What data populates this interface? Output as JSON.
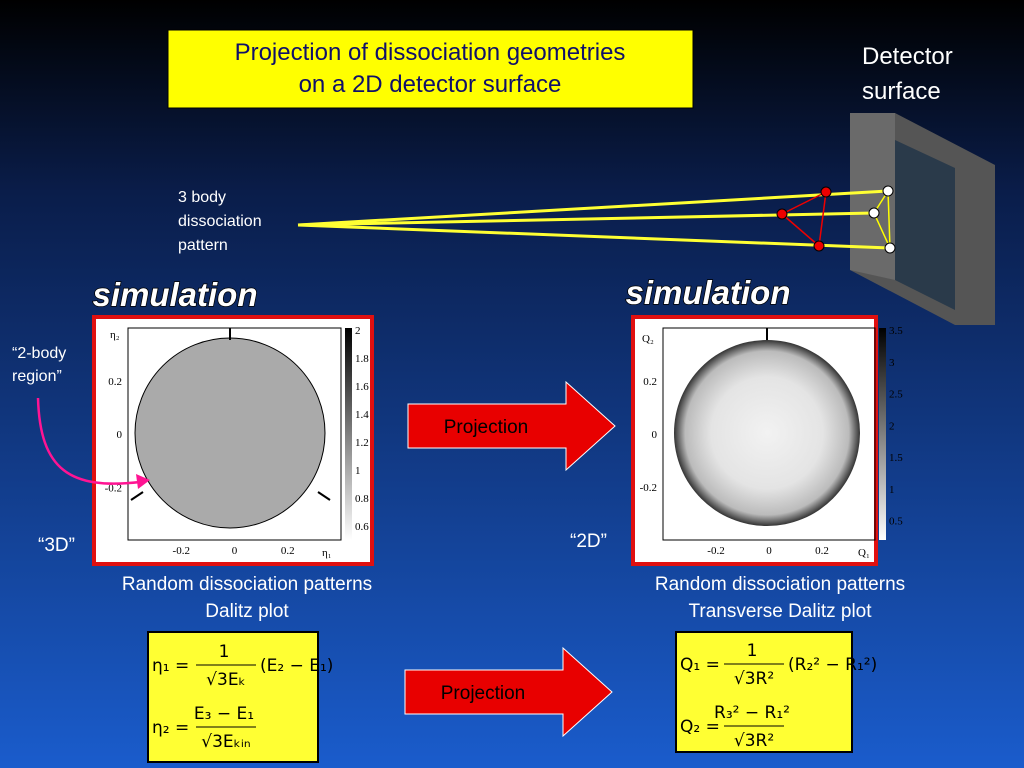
{
  "title": [
    "Projection of dissociation geometries",
    "on a 2D detector surface"
  ],
  "detector_label": [
    "Detector",
    "surface"
  ],
  "pattern_label": [
    "3 body",
    "dissociation",
    "pattern"
  ],
  "left_panel": {
    "heading": "simulation",
    "region_label": [
      "“2-body",
      "region”"
    ],
    "tag": "“3D”",
    "plot": {
      "y_axis_label": "η₂",
      "x_axis_label": "η₁",
      "yticks": [
        "0.2",
        "0",
        "-0.2"
      ],
      "xticks": [
        "-0.2",
        "0",
        "0.2"
      ],
      "colorbar_ticks": [
        "2",
        "1.8",
        "1.6",
        "1.4",
        "1.2",
        "1",
        "0.8",
        "0.6"
      ]
    },
    "caption": [
      "Random dissociation patterns",
      "Dalitz plot"
    ],
    "formula": [
      {
        "lhs": "η₁ =",
        "numerator": "1",
        "denominator": "√3Eₖ",
        "factor": "(E₂ − E₁)"
      },
      {
        "lhs": "η₂ =",
        "numerator": "E₃ − E₁",
        "denominator": "√3Eₖᵢₙ"
      }
    ]
  },
  "right_panel": {
    "heading": "simulation",
    "tag": "“2D”",
    "plot": {
      "y_axis_label": "Q₂",
      "x_axis_label": "Q₁",
      "yticks": [
        "0.2",
        "0",
        "-0.2"
      ],
      "xticks": [
        "-0.2",
        "0",
        "0.2"
      ],
      "colorbar_ticks": [
        "3.5",
        "3",
        "2.5",
        "2",
        "1.5",
        "1",
        "0.5"
      ]
    },
    "caption": [
      "Random dissociation patterns",
      "Transverse Dalitz plot"
    ],
    "formula": [
      {
        "lhs": "Q₁ =",
        "numerator": "1",
        "denominator": "√3R²",
        "factor": "(R₂² − R₁²)"
      },
      {
        "lhs": "Q₂ =",
        "numerator": "R₃² − R₁²",
        "denominator": "√3R²"
      }
    ]
  },
  "arrows": [
    "Projection",
    "Projection"
  ]
}
